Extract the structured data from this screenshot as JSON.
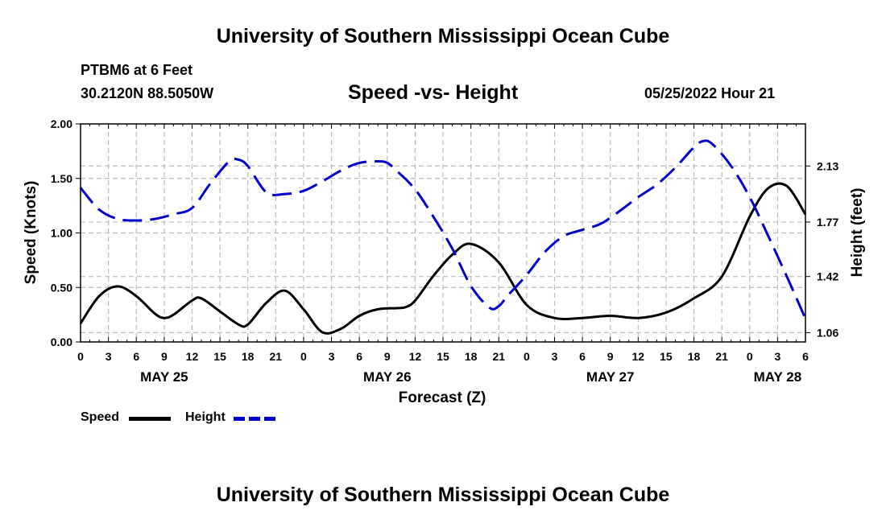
{
  "header": {
    "title": "University of Southern Mississippi Ocean Cube",
    "station": "PTBM6 at 6 Feet",
    "coords": "30.2120N  88.5050W",
    "subtitle": "Speed -vs- Height",
    "datetime": "05/25/2022 Hour 21"
  },
  "footer": {
    "title": "University of Southern Mississippi Ocean Cube"
  },
  "legend": {
    "speed_label": "Speed",
    "height_label": "Height",
    "speed_color": "#000000",
    "height_color": "#0000cc"
  },
  "chart_data": {
    "type": "line",
    "title": "Speed -vs- Height",
    "xlabel": "Forecast (Z)",
    "ylabel": "Speed (Knots)",
    "y2label": "Height (feet)",
    "x_hours": [
      0,
      3,
      6,
      9,
      12,
      15,
      18,
      21,
      24,
      27,
      30,
      33,
      36,
      39,
      42,
      45,
      48,
      51,
      54,
      57,
      60,
      63,
      66,
      69,
      72,
      75,
      78
    ],
    "xtick_labels": [
      "0",
      "3",
      "6",
      "9",
      "12",
      "15",
      "18",
      "21",
      "0",
      "3",
      "6",
      "9",
      "12",
      "15",
      "18",
      "21",
      "0",
      "3",
      "6",
      "9",
      "12",
      "15",
      "18",
      "21",
      "0",
      "3",
      "6"
    ],
    "day_labels": [
      {
        "hour": 9,
        "label": "MAY 25"
      },
      {
        "hour": 33,
        "label": "MAY 26"
      },
      {
        "hour": 57,
        "label": "MAY 27"
      },
      {
        "hour": 75,
        "label": "MAY 28"
      }
    ],
    "ylim": [
      0,
      2.0
    ],
    "yticks": [
      0.0,
      0.5,
      1.0,
      1.5,
      2.0
    ],
    "ytick_labels": [
      "0.00",
      "0.50",
      "1.00",
      "1.50",
      "2.00"
    ],
    "y2lim": [
      1.0,
      2.4
    ],
    "y2ticks": [
      1.06,
      1.42,
      1.77,
      2.13
    ],
    "y2tick_labels": [
      "1.06",
      "1.42",
      "1.77",
      "2.13"
    ],
    "grid": true,
    "series": [
      {
        "name": "Speed",
        "axis": "left",
        "color": "#000000",
        "style": "solid",
        "hours": [
          0,
          2,
          4,
          6,
          8,
          9,
          10,
          12,
          13,
          15,
          17,
          18,
          20,
          22,
          24,
          26,
          28,
          30,
          32,
          34,
          35,
          36,
          38,
          40,
          42,
          45,
          48,
          51,
          54,
          57,
          60,
          63,
          66,
          69,
          72,
          74,
          76,
          78
        ],
        "values": [
          0.17,
          0.42,
          0.51,
          0.42,
          0.26,
          0.22,
          0.25,
          0.38,
          0.4,
          0.28,
          0.16,
          0.16,
          0.36,
          0.47,
          0.3,
          0.09,
          0.12,
          0.24,
          0.3,
          0.31,
          0.32,
          0.38,
          0.61,
          0.8,
          0.9,
          0.73,
          0.34,
          0.22,
          0.22,
          0.24,
          0.22,
          0.27,
          0.4,
          0.6,
          1.15,
          1.41,
          1.43,
          1.17
        ]
      },
      {
        "name": "Height",
        "axis": "right",
        "color": "#0000cc",
        "style": "dashed",
        "hours": [
          0,
          2,
          4,
          6,
          8,
          10,
          12,
          14,
          16,
          17,
          18,
          20,
          22,
          24,
          26,
          28,
          30,
          32,
          33,
          34,
          36,
          38,
          40,
          42,
          44,
          45,
          46,
          48,
          50,
          52,
          54,
          56,
          58,
          60,
          62,
          64,
          66,
          67,
          68,
          70,
          72,
          74,
          76,
          78
        ],
        "values": [
          1.99,
          1.85,
          1.79,
          1.78,
          1.79,
          1.82,
          1.86,
          2.02,
          2.16,
          2.17,
          2.13,
          1.96,
          1.95,
          1.97,
          2.03,
          2.1,
          2.15,
          2.16,
          2.15,
          2.1,
          1.98,
          1.8,
          1.6,
          1.36,
          1.22,
          1.23,
          1.3,
          1.43,
          1.58,
          1.68,
          1.72,
          1.76,
          1.84,
          1.93,
          2.01,
          2.12,
          2.25,
          2.29,
          2.27,
          2.13,
          1.93,
          1.68,
          1.42,
          1.15
        ]
      }
    ]
  }
}
